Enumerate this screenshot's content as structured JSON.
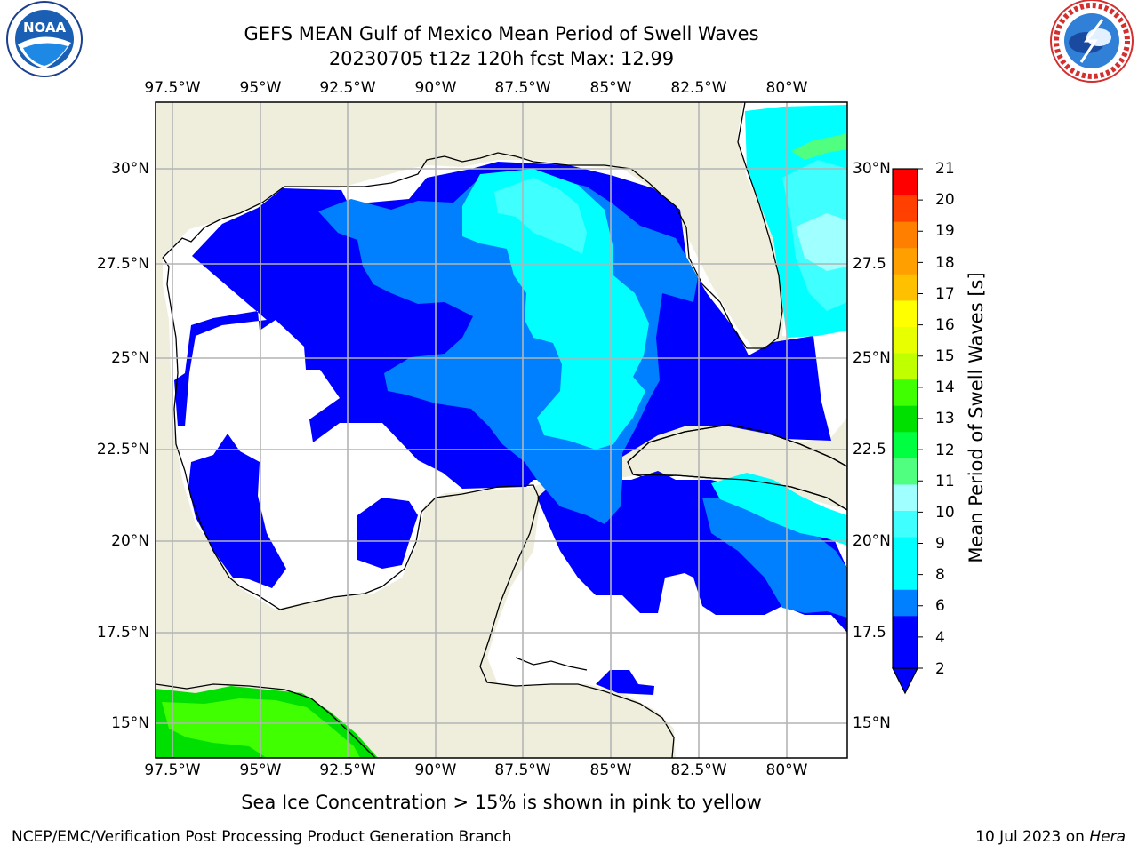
{
  "header": {
    "title_line1": "GEFS MEAN Gulf of Mexico Mean Period of Swell Waves",
    "title_line2": "20230705 t12z 120h fcst   Max: 12.99"
  },
  "logos": {
    "left": {
      "name": "noaa-logo",
      "text": "NOAA",
      "ring_text": "NATIONAL OCEANIC AND ATMOSPHERIC ADMINISTRATION · U.S. DEPARTMENT OF COMMERCE"
    },
    "right": {
      "name": "nws-logo",
      "ring_text": "NATIONAL WEATHER SERVICE"
    }
  },
  "map": {
    "lon_labels": [
      "97.5°W",
      "95°W",
      "92.5°W",
      "90°W",
      "87.5°W",
      "85°W",
      "82.5°W",
      "80°W"
    ],
    "lat_labels_left": [
      "30°N",
      "27.5°N",
      "25°N",
      "22.5°N",
      "20°N",
      "17.5°N",
      "15°N"
    ],
    "lat_labels_right": [
      "30°N",
      "27.5",
      "25°N",
      "22.5",
      "20°N",
      "17.5",
      "15°N"
    ],
    "lon_range": [
      -98,
      -79
    ],
    "lat_range": [
      14,
      32
    ],
    "colors": {
      "land": "#efeedc",
      "ocean_missing": "#ffffff",
      "grid": "#b4b4b4",
      "coast": "#000000"
    }
  },
  "colorbar": {
    "label": "Mean Period of Swell Waves [s]",
    "ticks": [
      "21",
      "20",
      "19",
      "18",
      "17",
      "16",
      "15",
      "14",
      "13",
      "12",
      "11",
      "10",
      "9",
      "8",
      "6",
      "4",
      "2"
    ],
    "bins": [
      {
        "lo": 2,
        "hi": 4,
        "color": "#0000ff"
      },
      {
        "lo": 4,
        "hi": 5,
        "color": "#0080ff"
      },
      {
        "lo": 5,
        "hi": 6,
        "color": "#00ffff"
      },
      {
        "lo": 6,
        "hi": 7,
        "color": "#00ffff"
      },
      {
        "lo": 7,
        "hi": 8,
        "color": "#40ffff"
      },
      {
        "lo": 8,
        "hi": 9,
        "color": "#a0ffff"
      },
      {
        "lo": 9,
        "hi": 10,
        "color": "#50ff80"
      },
      {
        "lo": 10,
        "hi": 11,
        "color": "#00ff40"
      },
      {
        "lo": 11,
        "hi": 12,
        "color": "#00e000"
      },
      {
        "lo": 12,
        "hi": 13,
        "color": "#40ff00"
      },
      {
        "lo": 13,
        "hi": 14,
        "color": "#c0ff00"
      },
      {
        "lo": 14,
        "hi": 15,
        "color": "#e8ff00"
      },
      {
        "lo": 15,
        "hi": 16,
        "color": "#ffff00"
      },
      {
        "lo": 16,
        "hi": 17,
        "color": "#ffc000"
      },
      {
        "lo": 17,
        "hi": 18,
        "color": "#ffa000"
      },
      {
        "lo": 18,
        "hi": 19,
        "color": "#ff8000"
      },
      {
        "lo": 19,
        "hi": 20,
        "color": "#ff4000"
      },
      {
        "lo": 20,
        "hi": 21,
        "color": "#ff0000"
      }
    ],
    "under_color": "#0000ff"
  },
  "footer": {
    "note": "Sea Ice Concentration > 15% is shown in pink to yellow",
    "credit": "NCEP/EMC/Verification Post Processing Product Generation Branch",
    "date": "10 Jul 2023 on",
    "host": "Hera"
  }
}
